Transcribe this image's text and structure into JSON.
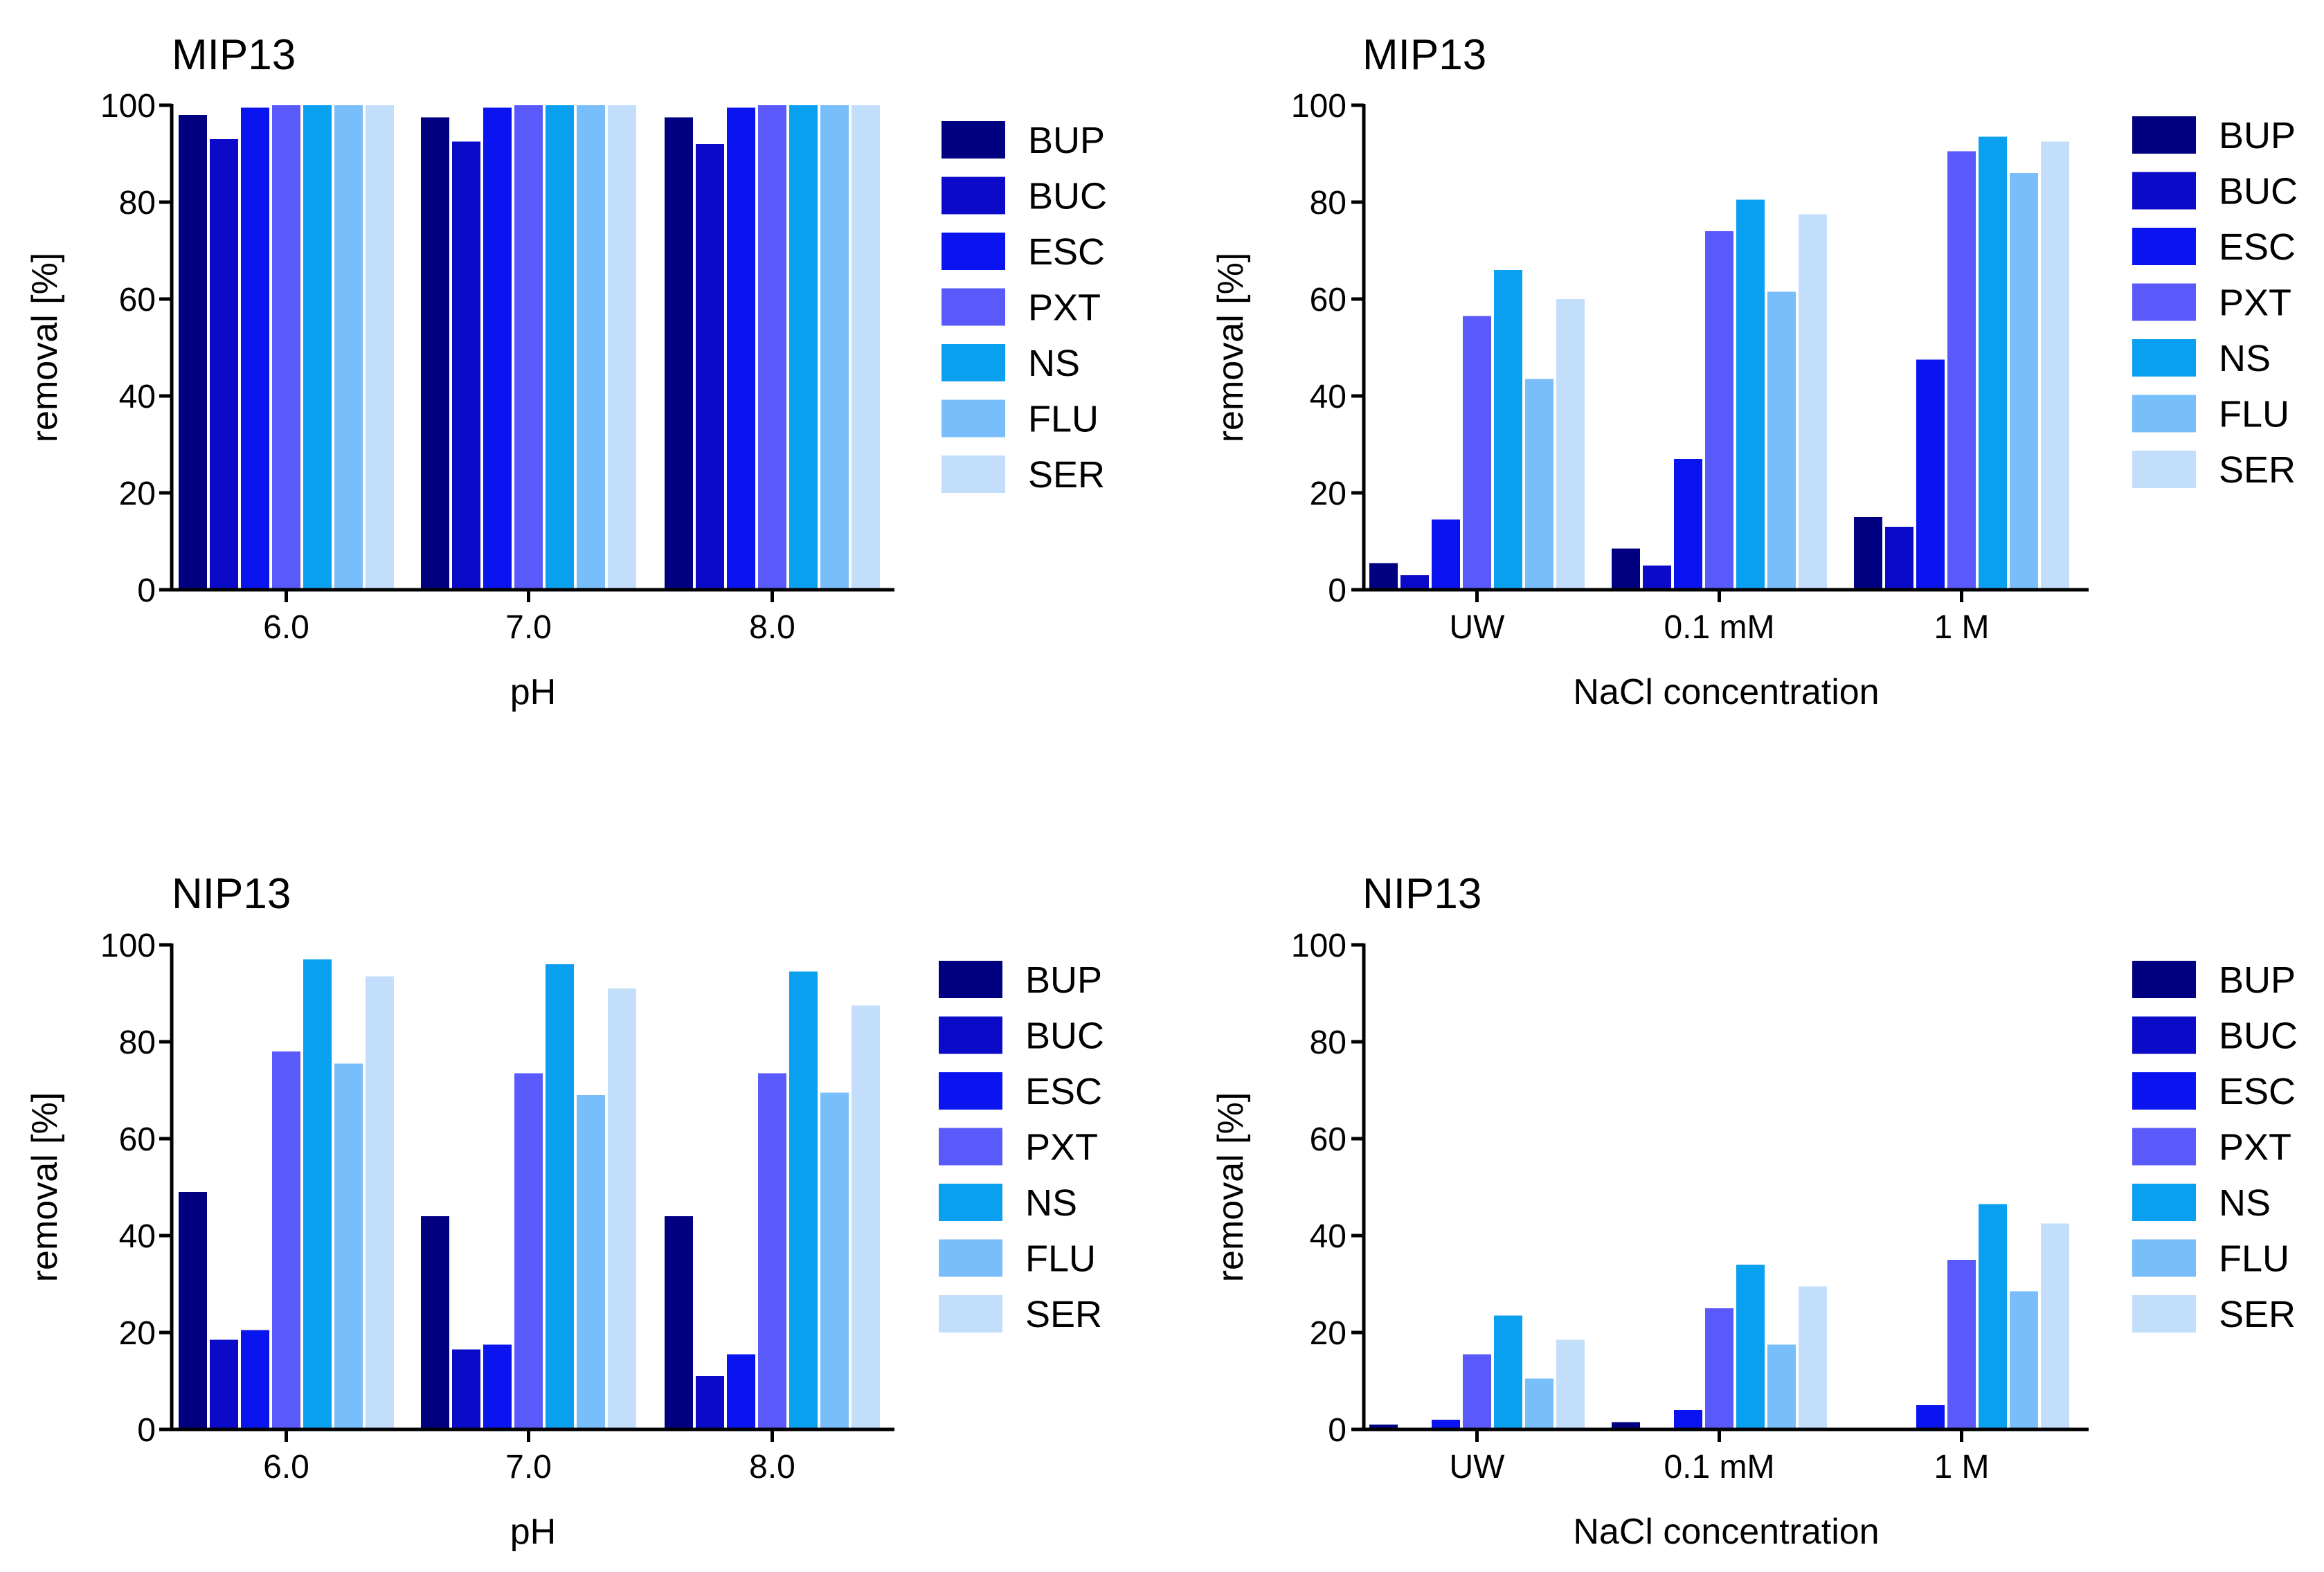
{
  "series_names": [
    "BUP",
    "BUC",
    "ESC",
    "PXT",
    "NS",
    "FLU",
    "SER"
  ],
  "series_colors": [
    "#000080",
    "#0A0AC8",
    "#0A14F0",
    "#5A5AFA",
    "#0AA0F0",
    "#78BEFA",
    "#C3DEFA"
  ],
  "chart_data": [
    {
      "type": "bar",
      "title": "MIP13",
      "xlabel": "pH",
      "ylabel": "removal [%]",
      "ylim": [
        0,
        100
      ],
      "yticks": [
        "0",
        "20",
        "40",
        "60",
        "80",
        "100"
      ],
      "categories": [
        "6.0",
        "7.0",
        "8.0"
      ],
      "legend_position": "right",
      "series": [
        {
          "name": "BUP",
          "values": [
            98,
            97.5,
            97.5
          ]
        },
        {
          "name": "BUC",
          "values": [
            93,
            92.5,
            92
          ]
        },
        {
          "name": "ESC",
          "values": [
            99.5,
            99.5,
            99.5
          ]
        },
        {
          "name": "PXT",
          "values": [
            100,
            100,
            100
          ]
        },
        {
          "name": "NS",
          "values": [
            100,
            100,
            100
          ]
        },
        {
          "name": "FLU",
          "values": [
            100,
            100,
            100
          ]
        },
        {
          "name": "SER",
          "values": [
            100,
            100,
            100
          ]
        }
      ]
    },
    {
      "type": "bar",
      "title": "MIP13",
      "xlabel": "NaCl concentration",
      "ylabel": "removal [%]",
      "ylim": [
        0,
        100
      ],
      "yticks": [
        "0",
        "20",
        "40",
        "60",
        "80",
        "100"
      ],
      "categories": [
        "UW",
        "0.1 mM",
        "1 M"
      ],
      "legend_position": "right",
      "series": [
        {
          "name": "BUP",
          "values": [
            5.5,
            8.5,
            15
          ]
        },
        {
          "name": "BUC",
          "values": [
            3,
            5,
            13
          ]
        },
        {
          "name": "ESC",
          "values": [
            14.5,
            27,
            47.5
          ]
        },
        {
          "name": "PXT",
          "values": [
            56.5,
            74,
            90.5
          ]
        },
        {
          "name": "NS",
          "values": [
            66,
            80.5,
            93.5
          ]
        },
        {
          "name": "FLU",
          "values": [
            43.5,
            61.5,
            86
          ]
        },
        {
          "name": "SER",
          "values": [
            60,
            77.5,
            92.5
          ]
        }
      ]
    },
    {
      "type": "bar",
      "title": "NIP13",
      "xlabel": "pH",
      "ylabel": "removal [%]",
      "ylim": [
        0,
        100
      ],
      "yticks": [
        "0",
        "20",
        "40",
        "60",
        "80",
        "100"
      ],
      "categories": [
        "6.0",
        "7.0",
        "8.0"
      ],
      "legend_position": "right",
      "series": [
        {
          "name": "BUP",
          "values": [
            49,
            44,
            44
          ]
        },
        {
          "name": "BUC",
          "values": [
            18.5,
            16.5,
            11
          ]
        },
        {
          "name": "ESC",
          "values": [
            20.5,
            17.5,
            15.5
          ]
        },
        {
          "name": "PXT",
          "values": [
            78,
            73.5,
            73.5
          ]
        },
        {
          "name": "NS",
          "values": [
            97,
            96,
            94.5
          ]
        },
        {
          "name": "FLU",
          "values": [
            75.5,
            69,
            69.5
          ]
        },
        {
          "name": "SER",
          "values": [
            93.5,
            91,
            87.5
          ]
        }
      ]
    },
    {
      "type": "bar",
      "title": "NIP13",
      "xlabel": "NaCl concentration",
      "ylabel": "removal [%]",
      "ylim": [
        0,
        100
      ],
      "yticks": [
        "0",
        "20",
        "40",
        "60",
        "80",
        "100"
      ],
      "categories": [
        "UW",
        "0.1 mM",
        "1 M"
      ],
      "legend_position": "right",
      "series": [
        {
          "name": "BUP",
          "values": [
            1,
            1.5,
            0
          ]
        },
        {
          "name": "BUC",
          "values": [
            0,
            0,
            0
          ]
        },
        {
          "name": "ESC",
          "values": [
            2,
            4,
            5
          ]
        },
        {
          "name": "PXT",
          "values": [
            15.5,
            25,
            35
          ]
        },
        {
          "name": "NS",
          "values": [
            23.5,
            34,
            46.5
          ]
        },
        {
          "name": "FLU",
          "values": [
            10.5,
            17.5,
            28.5
          ]
        },
        {
          "name": "SER",
          "values": [
            18.5,
            29.5,
            42.5
          ]
        }
      ]
    }
  ]
}
